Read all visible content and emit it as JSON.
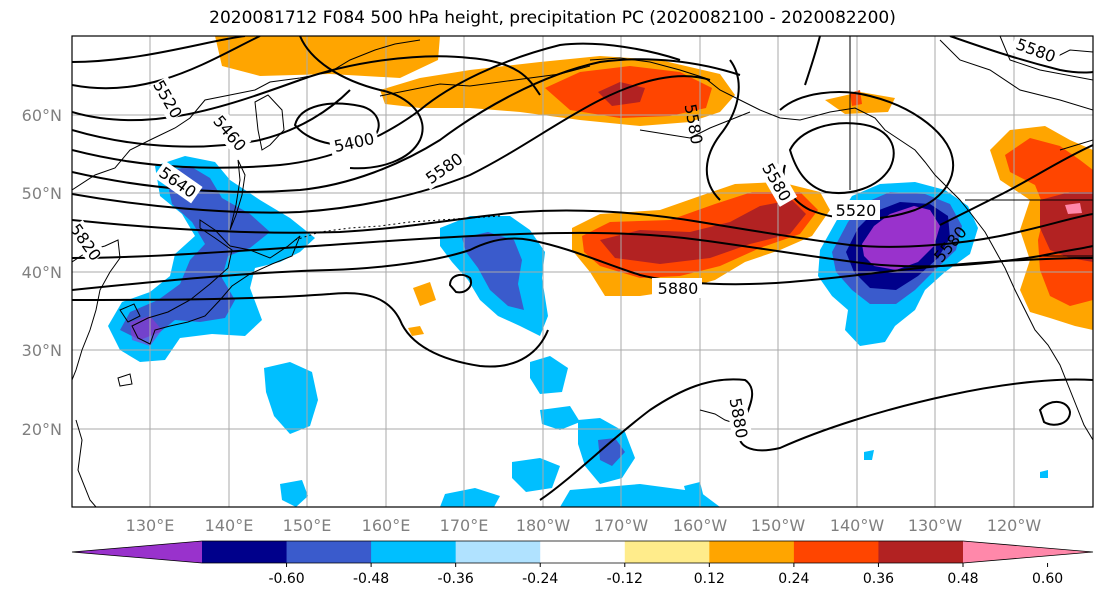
{
  "title": "2020081712 F084 500 hPa height, precipitation PC (2020082100 - 2020082200)",
  "lat_labels": [
    "60°N",
    "50°N",
    "40°N",
    "30°N",
    "20°N"
  ],
  "lon_labels": [
    "130°E",
    "140°E",
    "150°E",
    "160°E",
    "170°E",
    "180°W",
    "170°W",
    "160°W",
    "150°W",
    "140°W",
    "130°W",
    "120°W"
  ],
  "colorbar": {
    "colors": [
      "#9932CC",
      "#00008B",
      "#3A5BCC",
      "#00BFFF",
      "#B0E2FF",
      "#FFFFFF",
      "#FFEC8B",
      "#FFA500",
      "#FF4500",
      "#B22222",
      "#FF88AA"
    ],
    "tick_labels": [
      "-0.60",
      "-0.48",
      "-0.36",
      "-0.24",
      "-0.12",
      "0.12",
      "0.24",
      "0.36",
      "0.48",
      "0.60"
    ]
  },
  "contour_labels": [
    "5520",
    "5460",
    "5400",
    "5580",
    "5640",
    "5820",
    "5880",
    "5580",
    "5520",
    "5580",
    "5580",
    "5880",
    "5580"
  ]
}
